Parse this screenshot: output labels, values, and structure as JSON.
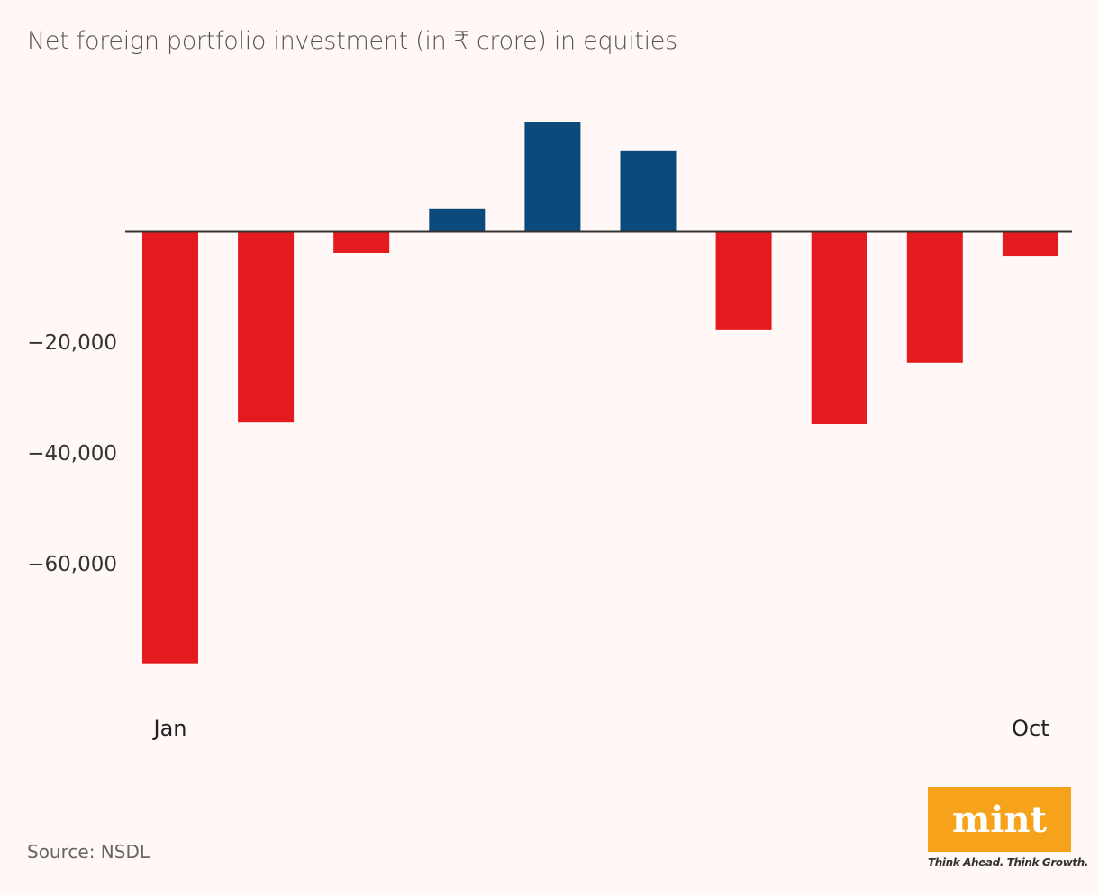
{
  "chart_data": {
    "type": "bar",
    "title": "Net foreign portfolio investment (in ₹ crore) in equities",
    "categories": [
      "Jan",
      "",
      "",
      "",
      "",
      "",
      "",
      "",
      "",
      "Oct"
    ],
    "values": [
      -78000,
      -34500,
      -3900,
      4100,
      19700,
      14500,
      -17700,
      -34800,
      -23700,
      -4400
    ],
    "yticks": [
      -20000,
      -40000,
      -60000
    ],
    "ytick_labels": [
      "−20,000",
      "−40,000",
      "−60,000"
    ],
    "ylim": [
      -83000,
      22000
    ],
    "grid": false,
    "colors": {
      "positive": "#0b4a7a",
      "negative": "#e31b1e",
      "zero_line": "#333333"
    }
  },
  "source": "Source: NSDL",
  "logo": {
    "text": "mint",
    "tagline": "Think Ahead. Think Growth.",
    "color": "#f7a21b"
  }
}
